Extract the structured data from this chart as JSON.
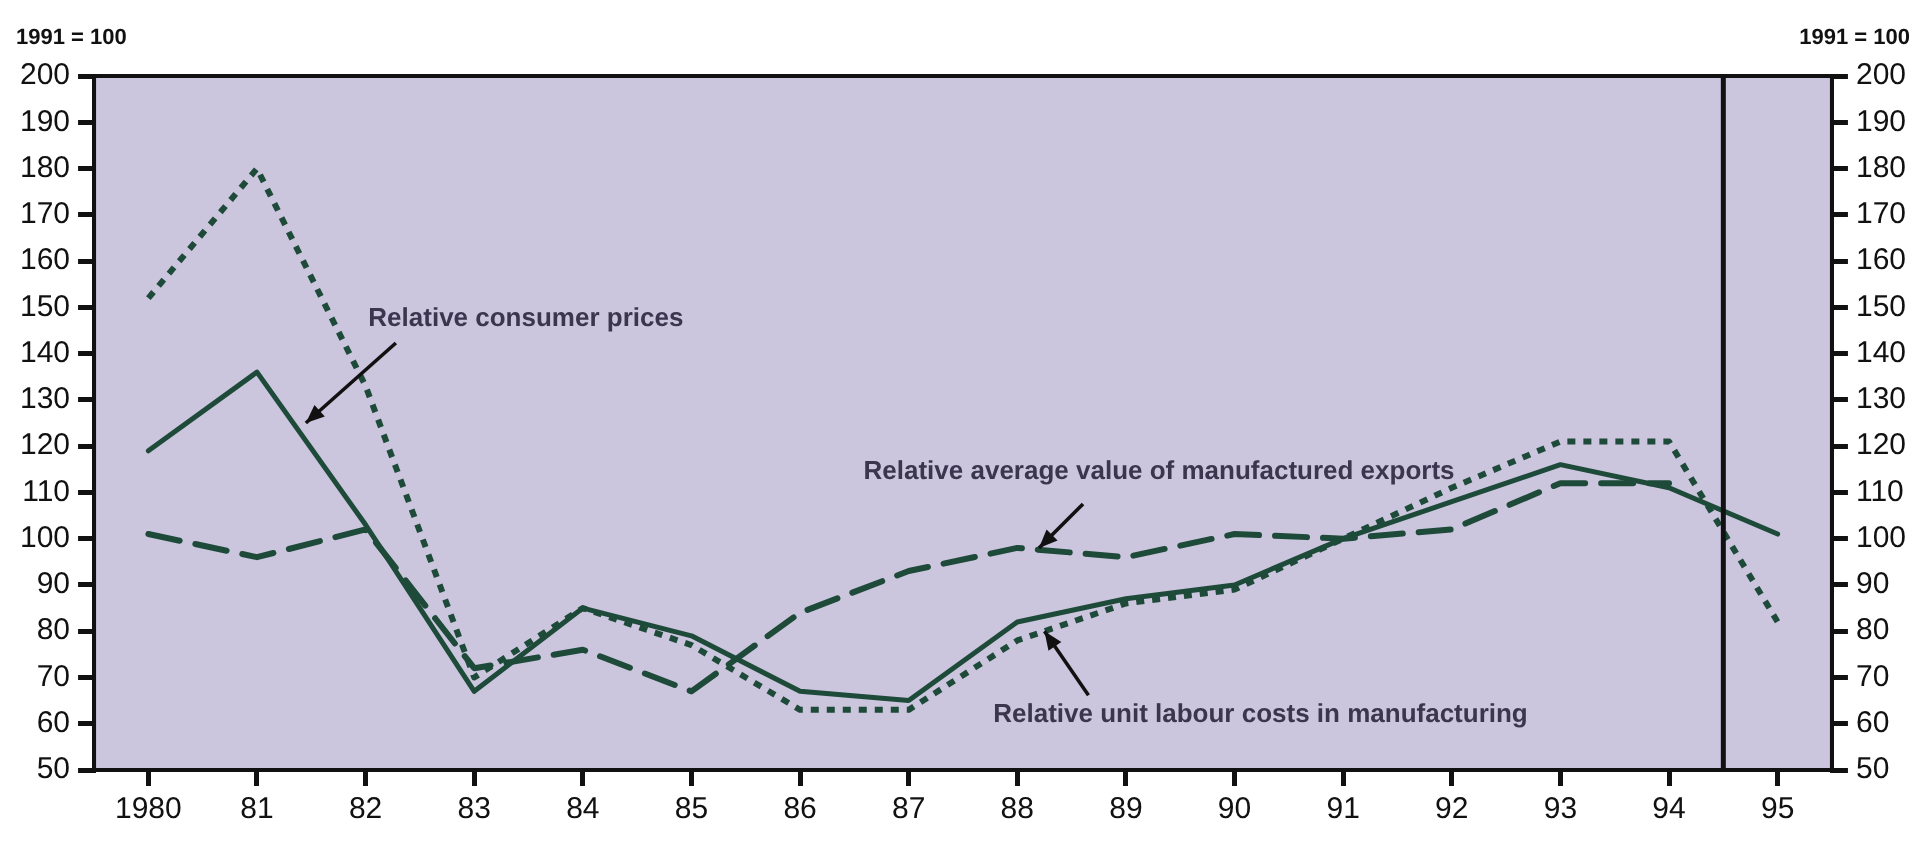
{
  "chart_data": {
    "type": "line",
    "ylabel": "1991 = 100",
    "y2label": "1991 = 100",
    "x": [
      1980,
      1981,
      1982,
      1983,
      1984,
      1985,
      1986,
      1987,
      1988,
      1989,
      1990,
      1991,
      1992,
      1993,
      1994,
      1995
    ],
    "xlim": [
      1979.5,
      1995.5
    ],
    "xticks": [
      1980,
      {
        "value": 1981,
        "label": "81"
      },
      {
        "value": 1982,
        "label": "82"
      },
      {
        "value": 1983,
        "label": "83"
      },
      {
        "value": 1984,
        "label": "84"
      },
      {
        "value": 1985,
        "label": "85"
      },
      {
        "value": 1986,
        "label": "86"
      },
      {
        "value": 1987,
        "label": "87"
      },
      {
        "value": 1988,
        "label": "88"
      },
      {
        "value": 1989,
        "label": "89"
      },
      {
        "value": 1990,
        "label": "90"
      },
      {
        "value": 1991,
        "label": "91"
      },
      {
        "value": 1992,
        "label": "92"
      },
      {
        "value": 1993,
        "label": "93"
      },
      {
        "value": 1994,
        "label": "94"
      },
      {
        "value": 1995,
        "label": "95"
      }
    ],
    "ylim": [
      50,
      200
    ],
    "yticks": [
      50,
      60,
      70,
      80,
      90,
      100,
      110,
      120,
      130,
      140,
      150,
      160,
      170,
      180,
      190,
      200
    ],
    "y2lim": [
      50,
      200
    ],
    "y2ticks": [
      50,
      60,
      70,
      80,
      90,
      100,
      110,
      120,
      130,
      140,
      150,
      160,
      170,
      180,
      190,
      200
    ],
    "series": [
      {
        "color": "#1e4a3a",
        "line_style": "solid",
        "values": [
          119,
          136,
          103,
          67,
          85,
          79,
          67,
          65,
          82,
          87,
          90,
          100,
          108,
          116,
          111,
          101
        ]
      },
      {
        "color": "#1e4a3a",
        "line_style": "dotted",
        "values": [
          152,
          180,
          133,
          70,
          85,
          77,
          63,
          63,
          78,
          86,
          89,
          100,
          111,
          121,
          121,
          82
        ]
      },
      {
        "color": "#1e4a3a",
        "line_style": "dashed",
        "values": [
          101,
          96,
          102,
          72,
          76,
          67,
          84,
          93,
          98,
          96,
          101,
          100,
          102,
          112,
          112,
          null
        ]
      }
    ],
    "ref_lines": [
      {
        "axis": "x",
        "value": 1994.5,
        "color": "#111111",
        "line_style": "solid"
      }
    ],
    "annotations": [
      {
        "text": "Relative consumer prices",
        "x": 1981.45,
        "y": 125
      },
      {
        "text": "Relative average value of manufactured exports",
        "x": 1988.2,
        "y": 98
      },
      {
        "text": "Relative unit labour costs in manufacturing",
        "x": 1988.25,
        "y": 80
      }
    ],
    "grid": false,
    "legend": false,
    "marker": "none"
  }
}
